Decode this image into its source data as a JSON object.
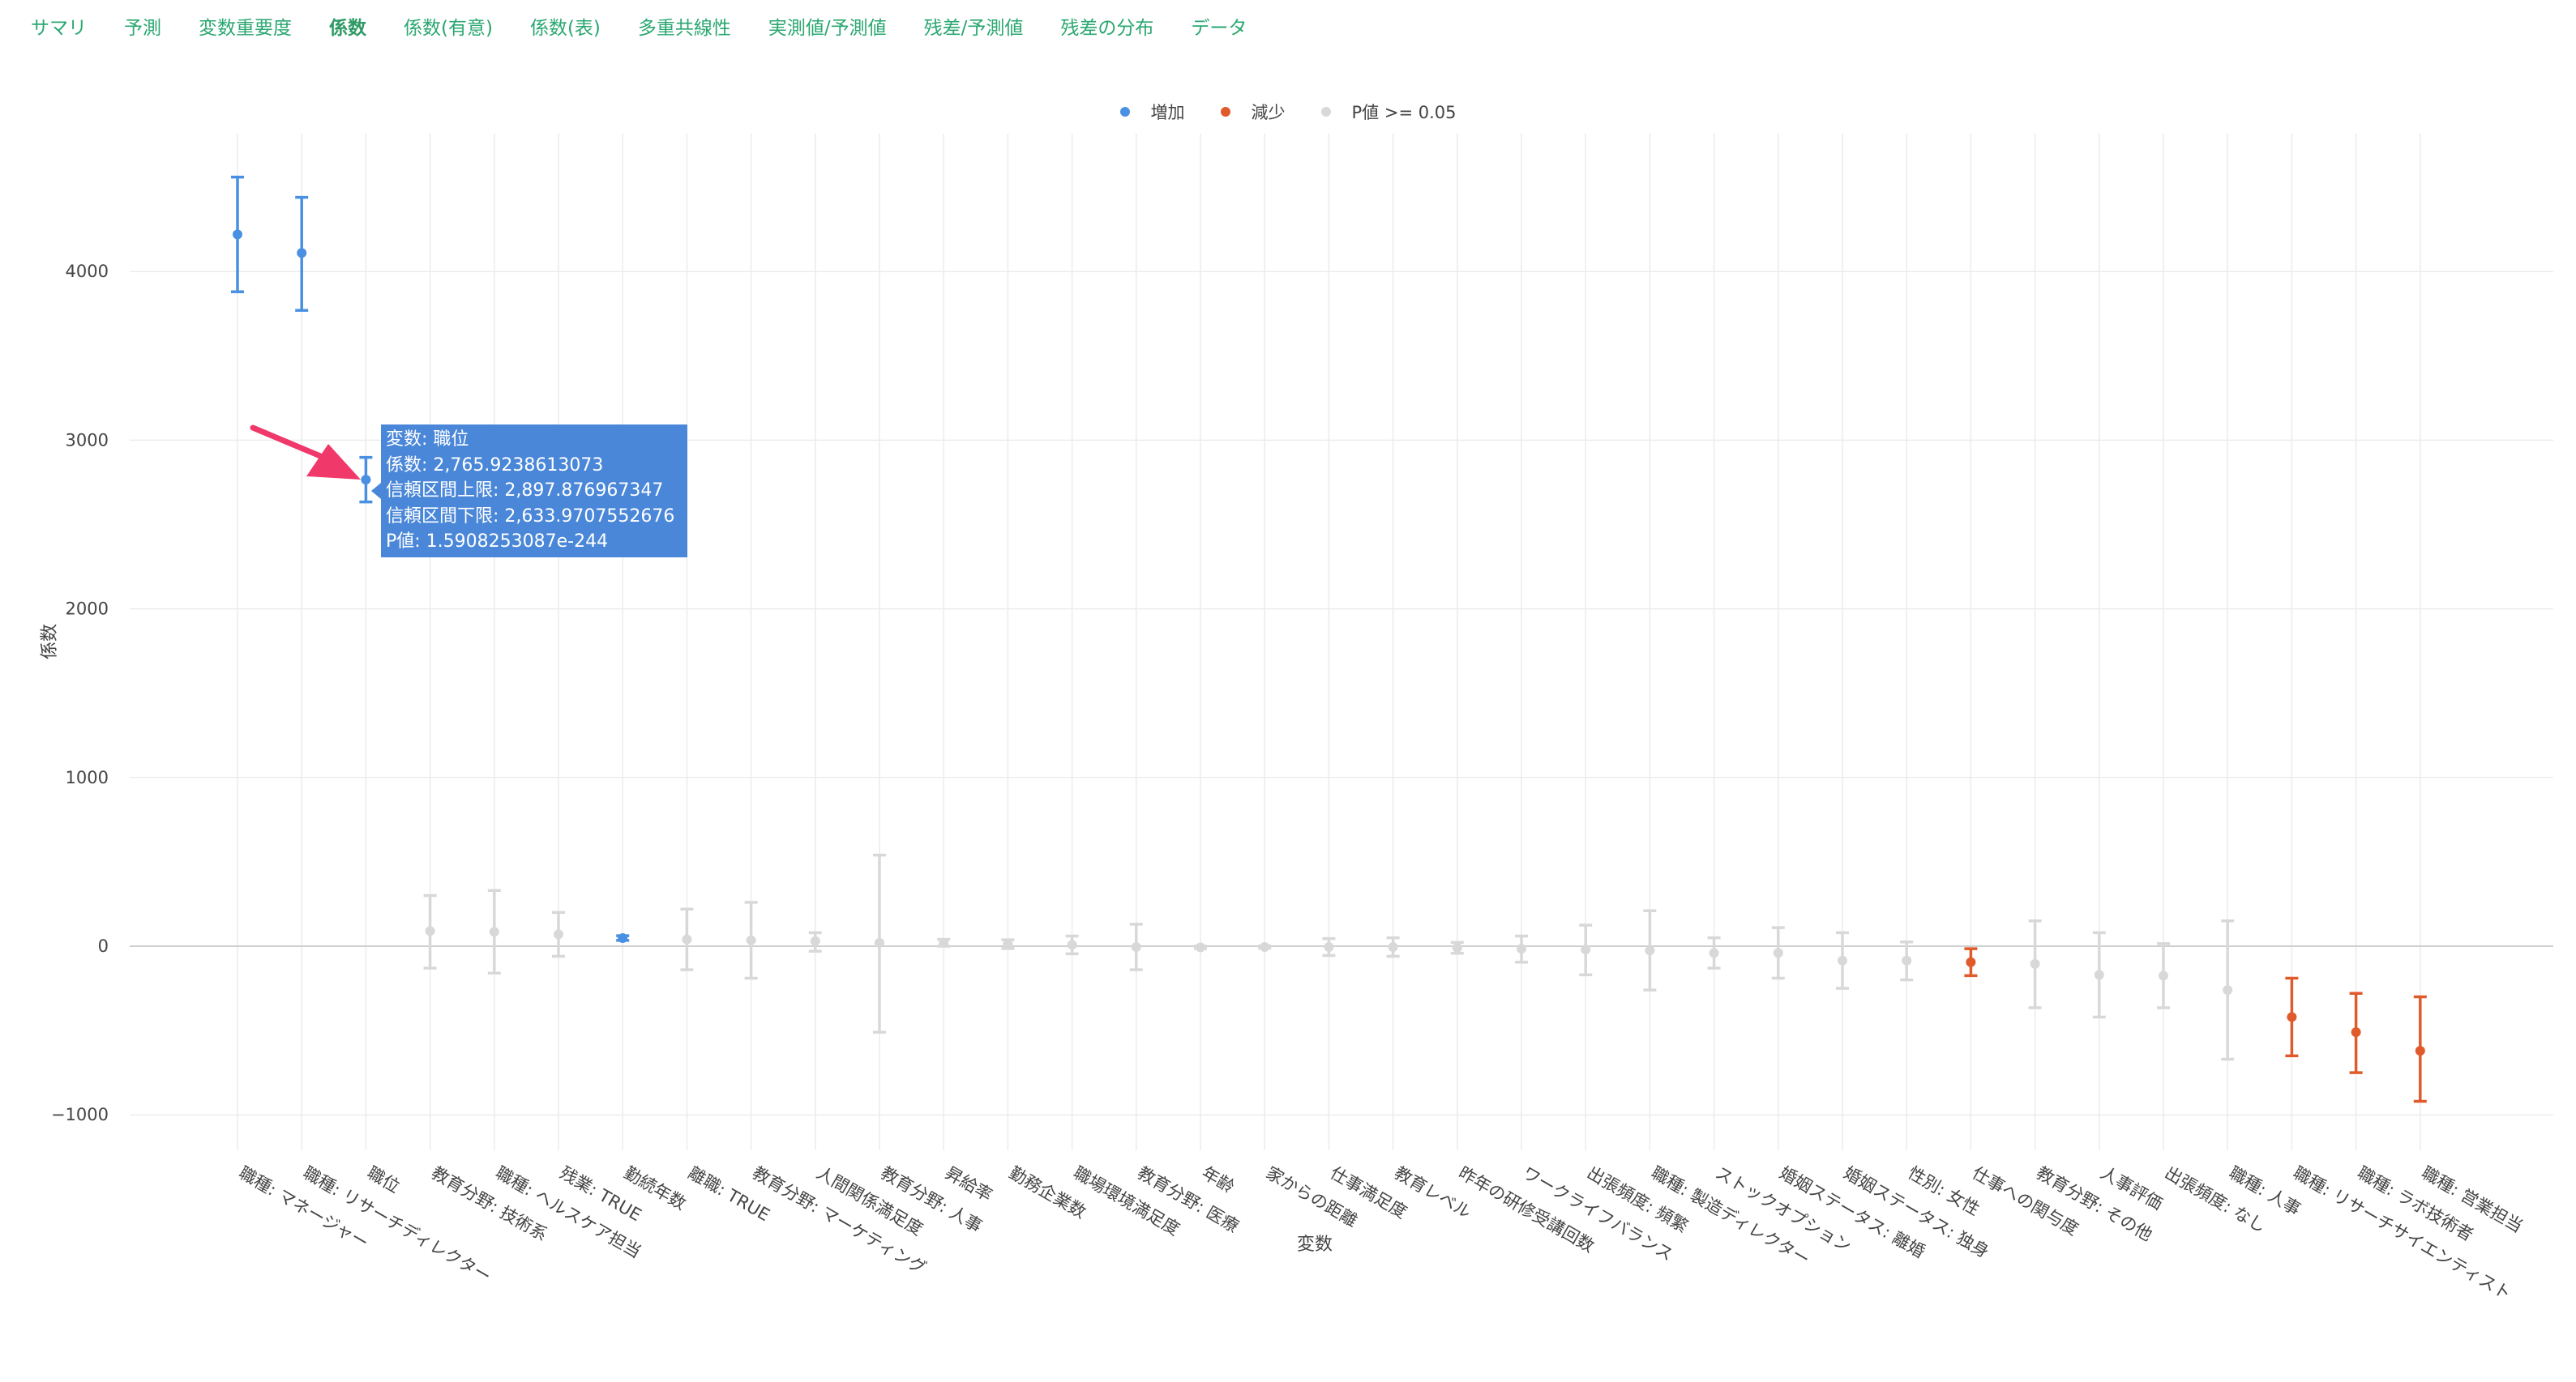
{
  "tabs": [
    {
      "label": "サマリ",
      "active": false
    },
    {
      "label": "予測",
      "active": false
    },
    {
      "label": "変数重要度",
      "active": false
    },
    {
      "label": "係数",
      "active": true
    },
    {
      "label": "係数(有意)",
      "active": false
    },
    {
      "label": "係数(表)",
      "active": false
    },
    {
      "label": "多重共線性",
      "active": false
    },
    {
      "label": "実測値/予測値",
      "active": false
    },
    {
      "label": "残差/予測値",
      "active": false
    },
    {
      "label": "残差の分布",
      "active": false
    },
    {
      "label": "データ",
      "active": false
    }
  ],
  "legend": [
    {
      "label": "増加",
      "color": "#4a90e2"
    },
    {
      "label": "減少",
      "color": "#e05a2b"
    },
    {
      "label": "P値 >= 0.05",
      "color": "#d8d8d8"
    }
  ],
  "tooltip": {
    "line1": "変数: 職位",
    "line2": "係数: 2,765.9238613073",
    "line3": "信頼区間上限: 2,897.876967347",
    "line4": "信頼区間下限: 2,633.9707552676",
    "line5": "P値: 1.5908253087e-244"
  },
  "chart_data": {
    "type": "scatter",
    "xlabel": "変数",
    "ylabel": "係数",
    "ylim": [
      -1200,
      4700
    ],
    "yticks": [
      -1000,
      0,
      1000,
      2000,
      3000,
      4000
    ],
    "ytick_labels": [
      "−1000",
      "0",
      "1000",
      "2000",
      "3000",
      "4000"
    ],
    "grid": true,
    "legend_position": "top-center",
    "colors": {
      "increase": "#4a90e2",
      "decrease": "#e05a2b",
      "insignificant": "#d8d8d8"
    },
    "points": [
      {
        "label": "職種: マネージャー",
        "coef": 4220,
        "upper": 4560,
        "lower": 3880,
        "sig": "increase"
      },
      {
        "label": "職種: リサーチディレクター",
        "coef": 4110,
        "upper": 4440,
        "lower": 3770,
        "sig": "increase"
      },
      {
        "label": "職位",
        "coef": 2765.92,
        "upper": 2897.88,
        "lower": 2633.97,
        "sig": "increase"
      },
      {
        "label": "教育分野: 技術系",
        "coef": 90,
        "upper": 300,
        "lower": -130,
        "sig": "insignificant"
      },
      {
        "label": "職種: ヘルスケア担当",
        "coef": 85,
        "upper": 330,
        "lower": -160,
        "sig": "insignificant"
      },
      {
        "label": "残業: TRUE",
        "coef": 70,
        "upper": 200,
        "lower": -60,
        "sig": "insignificant"
      },
      {
        "label": "勤続年数",
        "coef": 48,
        "upper": 62,
        "lower": 34,
        "sig": "increase"
      },
      {
        "label": "離職: TRUE",
        "coef": 40,
        "upper": 220,
        "lower": -140,
        "sig": "insignificant"
      },
      {
        "label": "教育分野: マーケティング",
        "coef": 35,
        "upper": 260,
        "lower": -190,
        "sig": "insignificant"
      },
      {
        "label": "人間関係満足度",
        "coef": 30,
        "upper": 80,
        "lower": -30,
        "sig": "insignificant"
      },
      {
        "label": "教育分野: 人事",
        "coef": 20,
        "upper": 540,
        "lower": -510,
        "sig": "insignificant"
      },
      {
        "label": "昇給率",
        "coef": 20,
        "upper": 40,
        "lower": 0,
        "sig": "insignificant"
      },
      {
        "label": "勤務企業数",
        "coef": 12,
        "upper": 38,
        "lower": -14,
        "sig": "insignificant"
      },
      {
        "label": "職場環境満足度",
        "coef": 8,
        "upper": 60,
        "lower": -45,
        "sig": "insignificant"
      },
      {
        "label": "教育分野: 医療",
        "coef": -5,
        "upper": 130,
        "lower": -140,
        "sig": "insignificant"
      },
      {
        "label": "年齢",
        "coef": -7,
        "upper": 0,
        "lower": -14,
        "sig": "insignificant"
      },
      {
        "label": "家からの距離",
        "coef": -5,
        "upper": 2,
        "lower": -12,
        "sig": "insignificant"
      },
      {
        "label": "仕事満足度",
        "coef": -5,
        "upper": 45,
        "lower": -55,
        "sig": "insignificant"
      },
      {
        "label": "教育レベル",
        "coef": -5,
        "upper": 50,
        "lower": -60,
        "sig": "insignificant"
      },
      {
        "label": "昨年の研修受講回数",
        "coef": -10,
        "upper": 22,
        "lower": -42,
        "sig": "insignificant"
      },
      {
        "label": "ワークライフバランス",
        "coef": -15,
        "upper": 60,
        "lower": -95,
        "sig": "insignificant"
      },
      {
        "label": "出張頻度: 頻繁",
        "coef": -20,
        "upper": 125,
        "lower": -170,
        "sig": "insignificant"
      },
      {
        "label": "職種: 製造ディレクター",
        "coef": -25,
        "upper": 210,
        "lower": -260,
        "sig": "insignificant"
      },
      {
        "label": "ストックオプション",
        "coef": -40,
        "upper": 50,
        "lower": -130,
        "sig": "insignificant"
      },
      {
        "label": "婚姻ステータス: 離婚",
        "coef": -40,
        "upper": 110,
        "lower": -190,
        "sig": "insignificant"
      },
      {
        "label": "婚姻ステータス: 独身",
        "coef": -85,
        "upper": 80,
        "lower": -250,
        "sig": "insignificant"
      },
      {
        "label": "性別: 女性",
        "coef": -85,
        "upper": 25,
        "lower": -200,
        "sig": "insignificant"
      },
      {
        "label": "仕事への関与度",
        "coef": -95,
        "upper": -15,
        "lower": -175,
        "sig": "decrease"
      },
      {
        "label": "教育分野: その他",
        "coef": -105,
        "upper": 150,
        "lower": -365,
        "sig": "insignificant"
      },
      {
        "label": "人事評価",
        "coef": -170,
        "upper": 80,
        "lower": -420,
        "sig": "insignificant"
      },
      {
        "label": "出張頻度: なし",
        "coef": -175,
        "upper": 15,
        "lower": -365,
        "sig": "insignificant"
      },
      {
        "label": "職種: 人事",
        "coef": -260,
        "upper": 150,
        "lower": -670,
        "sig": "insignificant"
      },
      {
        "label": "職種: リサーチサイエンティスト",
        "coef": -420,
        "upper": -190,
        "lower": -650,
        "sig": "decrease"
      },
      {
        "label": "職種: ラボ技術者",
        "coef": -510,
        "upper": -280,
        "lower": -750,
        "sig": "decrease"
      },
      {
        "label": "職種: 営業担当",
        "coef": -620,
        "upper": -300,
        "lower": -920,
        "sig": "decrease"
      }
    ]
  }
}
